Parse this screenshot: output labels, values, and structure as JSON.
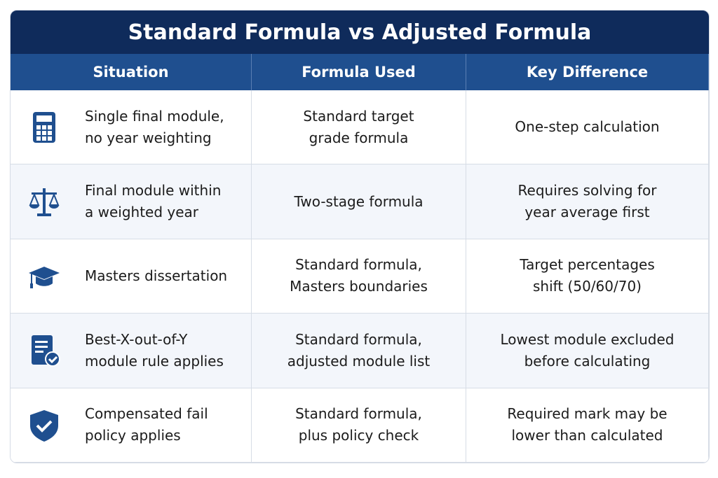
{
  "title": "Standard Formula vs Adjusted Formula",
  "table": {
    "header": [
      "Situation",
      "Formula Used",
      "Key Difference"
    ],
    "rows": [
      [
        [
          "Single final module,",
          "no year weighting"
        ],
        [
          "Standard target",
          "grade formula"
        ],
        [
          "One-step calculation"
        ]
      ],
      [
        [
          "Final module within",
          "a weighted year"
        ],
        [
          "Two-stage formula"
        ],
        [
          "Requires solving for",
          "year average first"
        ]
      ],
      [
        [
          "Masters dissertation"
        ],
        [
          "Standard formula,",
          "Masters boundaries"
        ],
        [
          "Target percentages",
          "shift (50/60/70)"
        ]
      ],
      [
        [
          "Best-X-out-of-Y",
          "module rule applies"
        ],
        [
          "Standard formula,",
          "adjusted module list"
        ],
        [
          "Lowest module excluded",
          "before calculating"
        ]
      ],
      [
        [
          "Compensated fail",
          "policy applies"
        ],
        [
          "Standard formula,",
          "plus policy check"
        ],
        [
          "Required mark may be",
          "lower than calculated"
        ]
      ]
    ]
  }
}
